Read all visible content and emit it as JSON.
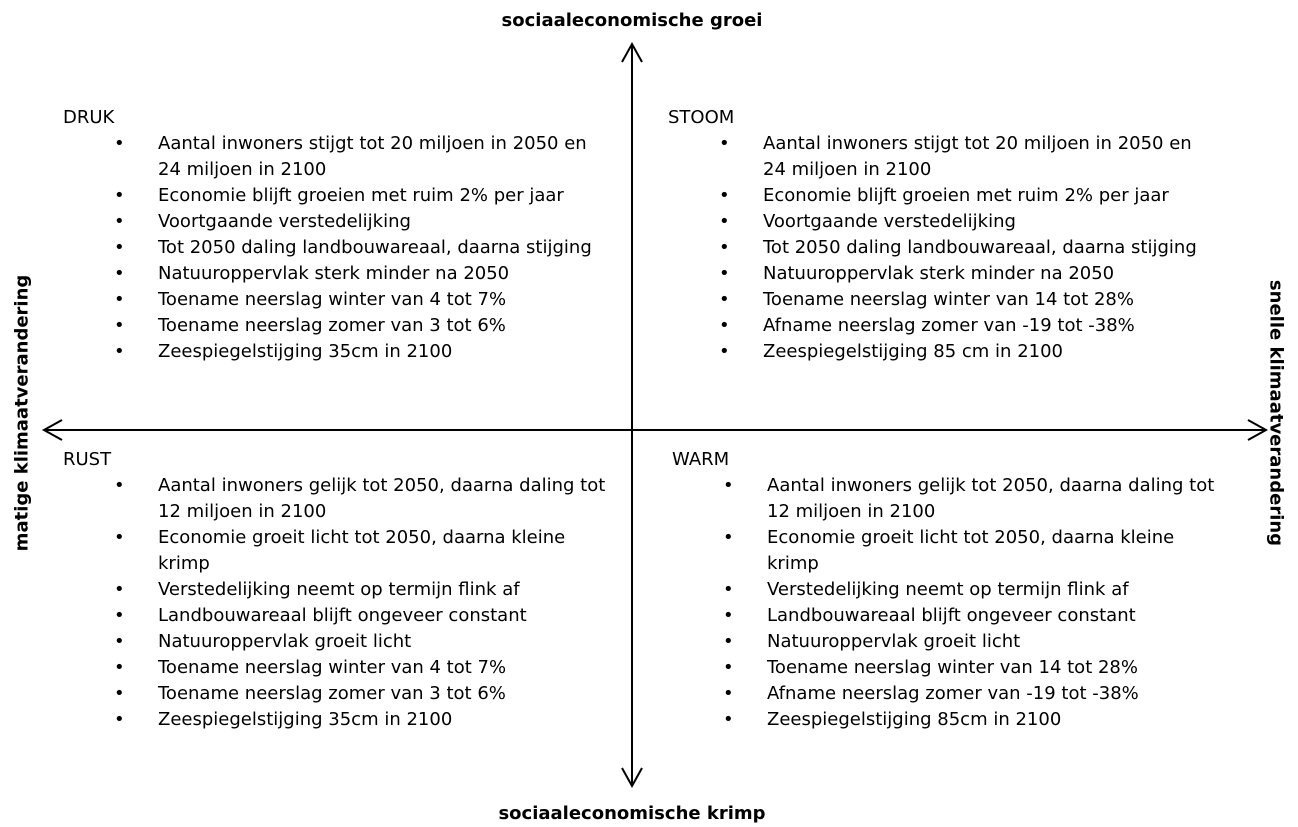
{
  "axes": {
    "top": "sociaaleconomische groei",
    "bottom": "sociaaleconomische krimp",
    "left": "matige klimaatverandering",
    "right": "snelle klimaatverandering"
  },
  "quadrants": [
    {
      "title": "DRUK",
      "items": [
        "Aantal inwoners stijgt tot 20 miljoen in 2050 en 24 miljoen in 2100",
        "Economie blijft groeien met ruim 2% per jaar",
        "Voortgaande verstedelijking",
        "Tot 2050 daling landbouwareaal, daarna stijging",
        "Natuuroppervlak sterk minder na 2050",
        "Toename neerslag winter van 4 tot 7%",
        "Toename neerslag zomer van 3 tot 6%",
        "Zeespiegelstijging 35cm in 2100"
      ]
    },
    {
      "title": "STOOM",
      "items": [
        "Aantal inwoners stijgt tot 20 miljoen in 2050 en 24 miljoen in 2100",
        "Economie blijft groeien met ruim 2% per jaar",
        "Voortgaande verstedelijking",
        "Tot 2050 daling landbouwareaal, daarna stijging",
        "Natuuroppervlak sterk minder na 2050",
        "Toename neerslag winter van 14 tot 28%",
        "Afname neerslag zomer van -19 tot -38%",
        "Zeespiegelstijging 85 cm in 2100"
      ]
    },
    {
      "title": "RUST",
      "items": [
        "Aantal inwoners gelijk tot 2050, daarna daling tot 12 miljoen in 2100",
        "Economie groeit licht tot 2050, daarna kleine krimp",
        "Verstedelijking neemt op termijn flink af",
        "Landbouwareaal blijft ongeveer constant",
        "Natuuroppervlak groeit licht",
        "Toename neerslag winter van 4 tot 7%",
        "Toename neerslag zomer van 3 tot 6%",
        "Zeespiegelstijging 35cm in 2100"
      ]
    },
    {
      "title": "WARM",
      "items": [
        "Aantal inwoners gelijk tot 2050, daarna daling tot 12 miljoen in 2100",
        "Economie groeit licht tot 2050, daarna kleine krimp",
        "Verstedelijking neemt op termijn flink af",
        "Landbouwareaal blijft ongeveer constant",
        "Natuuroppervlak groeit licht",
        "Toename neerslag winter van 14 tot 28%",
        "Afname neerslag zomer van -19 tot -38%",
        "Zeespiegelstijging 85cm in 2100"
      ]
    }
  ]
}
